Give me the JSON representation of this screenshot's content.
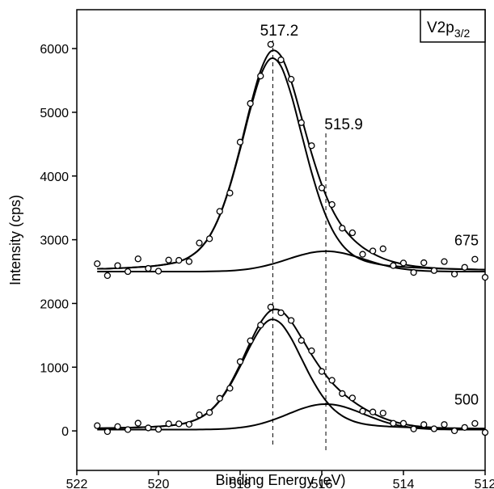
{
  "chart_data": {
    "type": "xps",
    "x_label": "Binding Energy (eV)",
    "y_label": "Intensity (cps)",
    "box_label": "V2p",
    "box_label_sub": "3/2",
    "color": "#000000",
    "xlim": [
      522,
      512
    ],
    "xticks": [
      522,
      520,
      518,
      516,
      514,
      512
    ],
    "ylim": [
      -620,
      6610
    ],
    "yticks": [
      0,
      1000,
      2000,
      3000,
      4000,
      5000,
      6000
    ],
    "peak_lines": [
      517.2,
      515.9
    ],
    "x": [
      521.5,
      521.25,
      521,
      520.75,
      520.5,
      520.25,
      520,
      519.75,
      519.5,
      519.25,
      519,
      518.75,
      518.5,
      518.25,
      518,
      517.75,
      517.5,
      517.25,
      517,
      516.75,
      516.5,
      516.25,
      516,
      515.75,
      515.5,
      515.25,
      515,
      514.75,
      514.5,
      514.25,
      514,
      513.75,
      513.5,
      513.25,
      513,
      512.75,
      512.5,
      512.25,
      512
    ],
    "series": [
      {
        "style": "markers",
        "values": [
          2624,
          2437,
          2594,
          2500,
          2700,
          2550,
          2507,
          2681,
          2677,
          2658,
          2949,
          3016,
          3445,
          3733,
          4532,
          5138,
          5569,
          6066,
          5823,
          5519,
          4837,
          4476,
          3813,
          3553,
          3181,
          3109,
          2772,
          2824,
          2858,
          2594,
          2635,
          2487,
          2639,
          2516,
          2657,
          2461,
          2567,
          2694,
          2410
        ]
      },
      {
        "style": "line",
        "label": "675",
        "values": [
          2544,
          2547,
          2554,
          2560,
          2570,
          2580,
          2597,
          2621,
          2657,
          2728,
          2849,
          3056,
          3385,
          3853,
          4442,
          5088,
          5649,
          5956,
          5883,
          5489,
          4927,
          4356,
          3863,
          3483,
          3211,
          3019,
          2882,
          2784,
          2708,
          2654,
          2615,
          2587,
          2569,
          2556,
          2547,
          2541,
          2537,
          2534,
          2530
        ]
      },
      {
        "style": "line",
        "values": [
          2544,
          2547,
          2554,
          2560,
          2570,
          2580,
          2597,
          2621,
          2657,
          2728,
          2848,
          3053,
          3378,
          3840,
          4416,
          5043,
          5575,
          5843,
          5723,
          5277,
          4667,
          4058,
          3545,
          3167,
          2919,
          2768,
          2681,
          2634,
          2604,
          2587,
          2574,
          2564,
          2557,
          2550,
          2544,
          2540,
          2537,
          2534,
          2530
        ]
      },
      {
        "style": "line",
        "values": [
          2500,
          2500,
          2500,
          2500,
          2500,
          2500,
          2500,
          2500,
          2500,
          2500,
          2501,
          2503,
          2507,
          2513,
          2526,
          2545,
          2574,
          2613,
          2660,
          2712,
          2760,
          2798,
          2818,
          2816,
          2792,
          2751,
          2701,
          2650,
          2604,
          2567,
          2541,
          2523,
          2512,
          2506,
          2503,
          2501,
          2500,
          2500,
          2500
        ]
      },
      {
        "style": "markers",
        "values": [
          82,
          -11,
          68,
          21,
          121,
          47,
          25,
          112,
          111,
          103,
          252,
          289,
          511,
          669,
          1087,
          1414,
          1660,
          1943,
          1854,
          1733,
          1420,
          1257,
          933,
          794,
          586,
          517,
          310,
          297,
          279,
          119,
          119,
          31,
          99,
          33,
          100,
          2,
          54,
          117,
          -24
        ]
      },
      {
        "style": "line",
        "label": "500",
        "values": [
          42,
          44,
          48,
          51,
          56,
          62,
          70,
          82,
          101,
          138,
          202,
          309,
          481,
          729,
          1042,
          1389,
          1700,
          1888,
          1884,
          1718,
          1465,
          1197,
          958,
          759,
          601,
          472,
          365,
          277,
          204,
          149,
          109,
          81,
          64,
          53,
          45,
          42,
          39,
          37,
          36
        ]
      },
      {
        "style": "line",
        "values": [
          42,
          44,
          48,
          51,
          56,
          62,
          70,
          82,
          101,
          138,
          200,
          305,
          473,
          712,
          1010,
          1333,
          1608,
          1747,
          1684,
          1454,
          1139,
          824,
          560,
          364,
          236,
          158,
          113,
          89,
          74,
          65,
          58,
          53,
          49,
          46,
          42,
          41,
          39,
          37,
          36
        ]
      },
      {
        "style": "line",
        "values": [
          20,
          20,
          20,
          20,
          20,
          20,
          20,
          20,
          20,
          20,
          22,
          24,
          28,
          37,
          52,
          76,
          112,
          161,
          220,
          284,
          346,
          393,
          418,
          415,
          385,
          334,
          272,
          208,
          150,
          104,
          71,
          48,
          35,
          27,
          23,
          21,
          20,
          20,
          20
        ]
      }
    ]
  }
}
